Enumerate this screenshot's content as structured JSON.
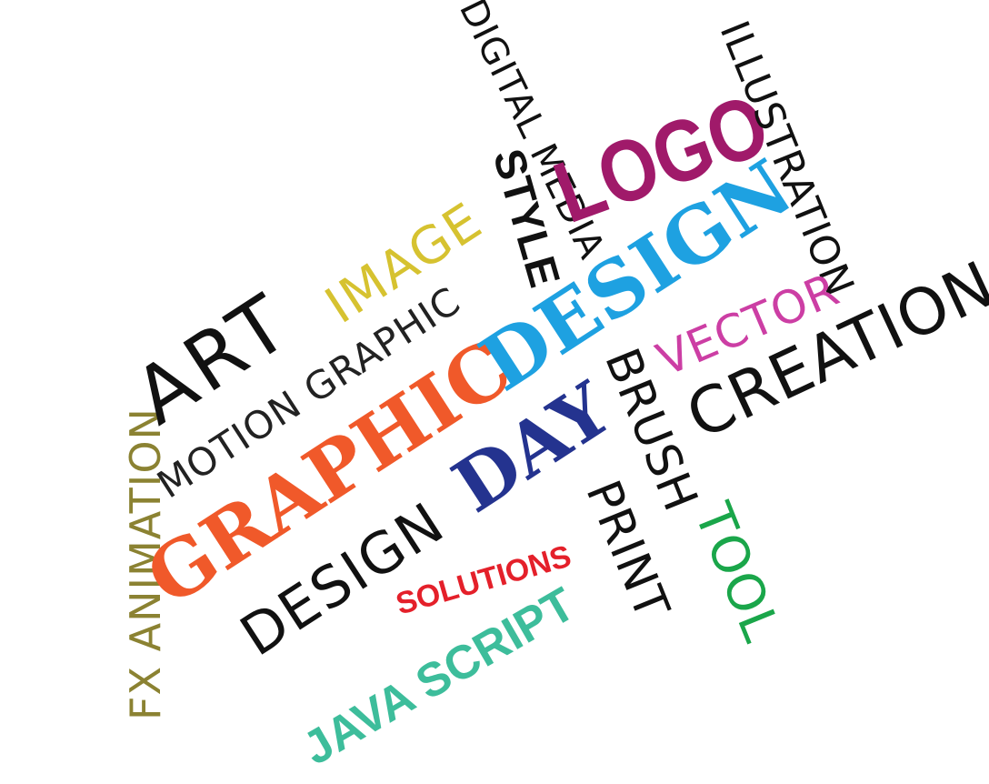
{
  "words": {
    "fx_animation": {
      "text": "FX ANIMATION",
      "color": "#8b8232"
    },
    "art": {
      "text": "ART",
      "color": "#111111"
    },
    "image": {
      "text": "IMAGE",
      "color": "#d6c230"
    },
    "motion_graphic": {
      "text": "MOTION GRAPHIC",
      "color": "#222222"
    },
    "graphic": {
      "text": "GRAPHIC",
      "color": "#f0592a"
    },
    "design_slab": {
      "text": "DESIGN",
      "color": "#1ea1e1"
    },
    "design_thin": {
      "text": "DESIGN",
      "color": "#111111"
    },
    "day": {
      "text": "DAY",
      "color": "#24338f"
    },
    "solutions": {
      "text": "SOLUTIONS",
      "color": "#e4202a"
    },
    "java_script": {
      "text": "JAVA SCRIPT",
      "color": "#3dbd9b"
    },
    "digital_media": {
      "text": "DIGITAL MEDIA",
      "color": "#111111"
    },
    "style": {
      "text": "STYLE",
      "color": "#111111"
    },
    "logo": {
      "text": "LOGO",
      "color": "#a01a6a"
    },
    "illustration": {
      "text": "ILLUSTRATION",
      "color": "#111111"
    },
    "vector": {
      "text": "VECTOR",
      "color": "#cc3ea4"
    },
    "creation": {
      "text": "CREATION",
      "color": "#111111"
    },
    "brush": {
      "text": "BRUSH",
      "color": "#111111"
    },
    "print": {
      "text": "PRINT",
      "color": "#111111"
    },
    "tool": {
      "text": "TOOL",
      "color": "#1aa64a"
    }
  },
  "background_color": "#ffffff"
}
